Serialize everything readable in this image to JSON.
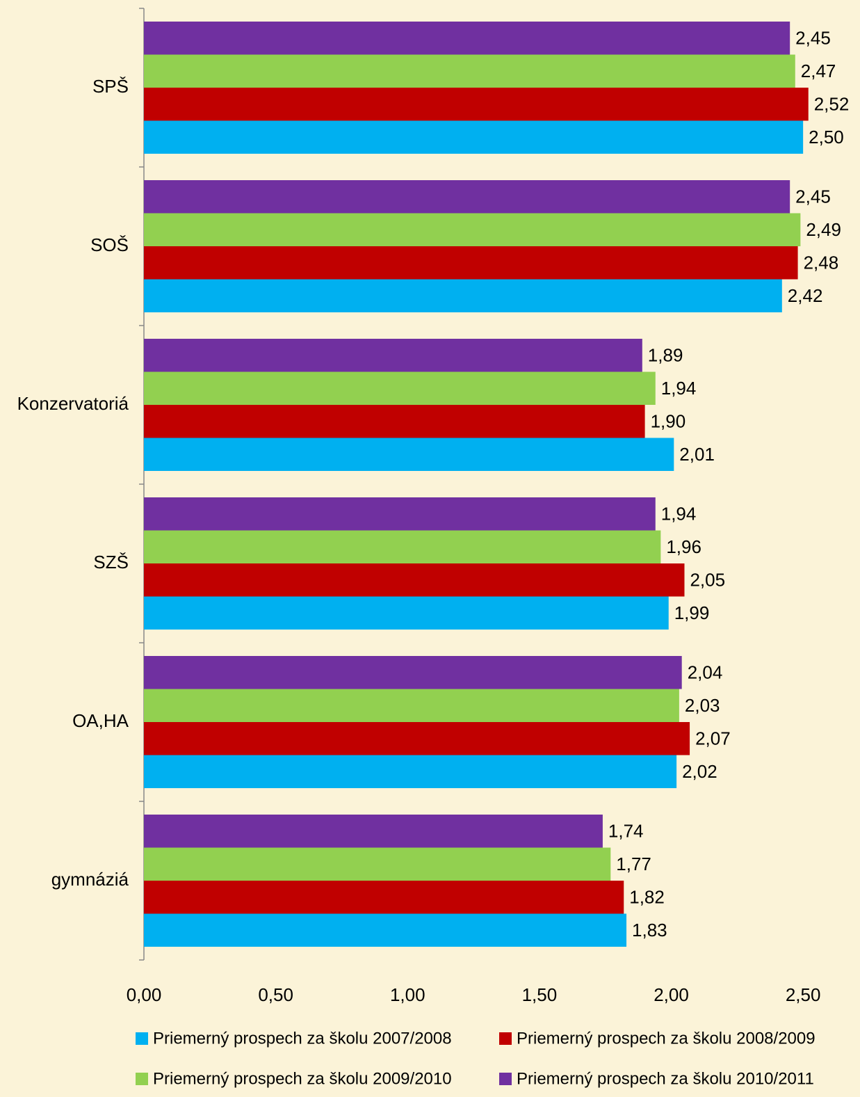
{
  "chart_data": {
    "type": "bar",
    "orientation": "horizontal",
    "categories": [
      "SPŠ",
      "SOŠ",
      "Konzervatoriá",
      "SZŠ",
      "OA,HA",
      "gymnáziá"
    ],
    "series": [
      {
        "name": "Priemerný prospech za školu 2007/2008",
        "color": "#00b0f0",
        "values": [
          2.5,
          2.42,
          2.01,
          1.99,
          2.02,
          1.83
        ],
        "value_labels": [
          "2,50",
          "2,42",
          "2,01",
          "1,99",
          "2,02",
          "1,83"
        ]
      },
      {
        "name": "Priemerný prospech za školu 2008/2009",
        "color": "#c00000",
        "values": [
          2.52,
          2.48,
          1.9,
          2.05,
          2.07,
          1.82
        ],
        "value_labels": [
          "2,52",
          "2,48",
          "1,90",
          "2,05",
          "2,07",
          "1,82"
        ]
      },
      {
        "name": "Priemerný prospech za školu 2009/2010",
        "color": "#92d050",
        "values": [
          2.47,
          2.49,
          1.94,
          1.96,
          2.03,
          1.77
        ],
        "value_labels": [
          "2,47",
          "2,49",
          "1,94",
          "1,96",
          "2,03",
          "1,77"
        ]
      },
      {
        "name": "Priemerný prospech za školu 2010/2011",
        "color": "#7030a0",
        "values": [
          2.45,
          2.45,
          1.89,
          1.94,
          2.04,
          1.74
        ],
        "value_labels": [
          "2,45",
          "2,45",
          "1,89",
          "1,94",
          "2,04",
          "1,74"
        ]
      }
    ],
    "xlim": [
      0,
      2.7
    ],
    "xticks": [
      {
        "value": 0,
        "label": "0,00"
      },
      {
        "value": 0.5,
        "label": "0,50"
      },
      {
        "value": 1,
        "label": "1,00"
      },
      {
        "value": 1.5,
        "label": "1,50"
      },
      {
        "value": 2,
        "label": "2,00"
      },
      {
        "value": 2.5,
        "label": "2,50"
      }
    ],
    "grid": false,
    "legend": "bottom"
  }
}
